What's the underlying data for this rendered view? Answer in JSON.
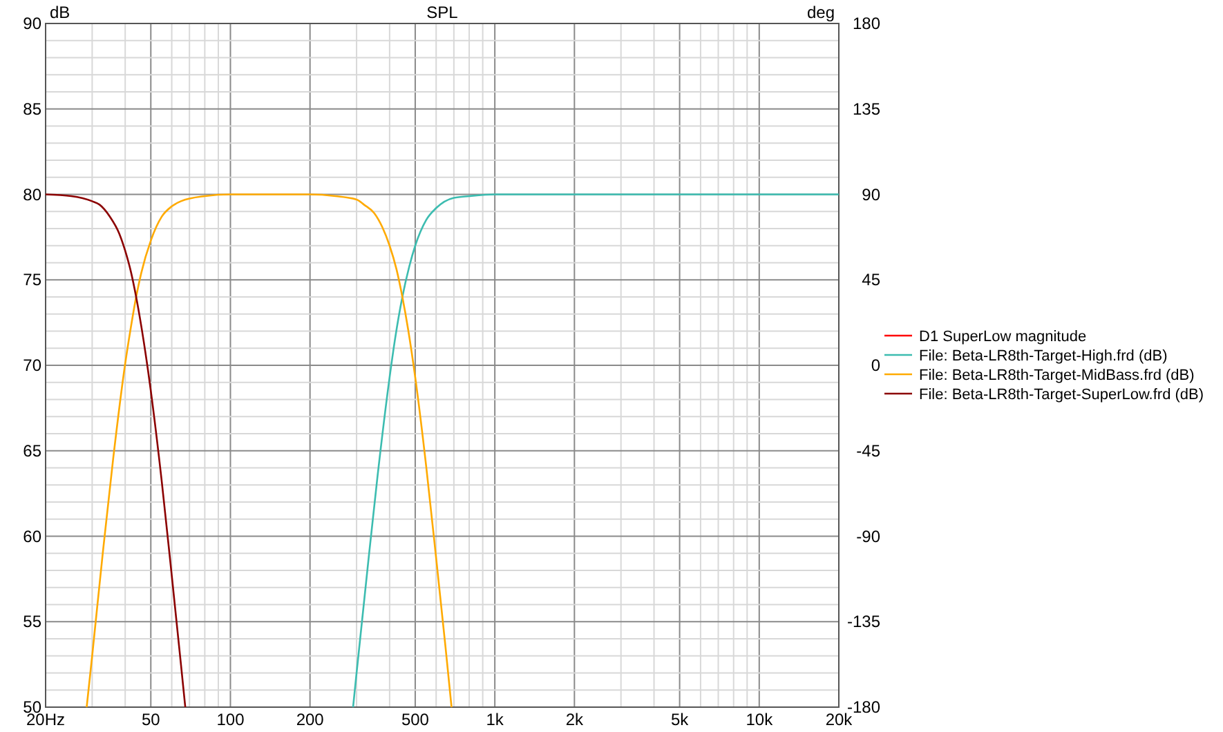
{
  "chart_data": {
    "type": "line",
    "title": "SPL",
    "ylabel": "dB",
    "y2label": "deg",
    "xlim": [
      20,
      20000
    ],
    "ylim": [
      50,
      90
    ],
    "y2lim": [
      -180,
      180
    ],
    "log": "x",
    "grid": true,
    "legend": "right",
    "line_style": "solid",
    "marker": "none",
    "xticks": [
      {
        "value": 20,
        "label": "20Hz"
      },
      {
        "value": 30,
        "label": null
      },
      {
        "value": 40,
        "label": null
      },
      50,
      {
        "value": 60,
        "label": null
      },
      {
        "value": 70,
        "label": null
      },
      {
        "value": 80,
        "label": null
      },
      {
        "value": 90,
        "label": null
      },
      100,
      200,
      {
        "value": 300,
        "label": null
      },
      {
        "value": 400,
        "label": null
      },
      500,
      {
        "value": 600,
        "label": null
      },
      {
        "value": 700,
        "label": null
      },
      {
        "value": 800,
        "label": null
      },
      {
        "value": 900,
        "label": null
      },
      {
        "value": 1000,
        "label": "1k"
      },
      {
        "value": 2000,
        "label": "2k"
      },
      {
        "value": 3000,
        "label": null
      },
      {
        "value": 4000,
        "label": null
      },
      {
        "value": 5000,
        "label": "5k"
      },
      {
        "value": 6000,
        "label": null
      },
      {
        "value": 7000,
        "label": null
      },
      {
        "value": 8000,
        "label": null
      },
      {
        "value": 9000,
        "label": null
      },
      {
        "value": 10000,
        "label": "10k"
      },
      {
        "value": 20000,
        "label": "20k"
      }
    ],
    "yticks": [
      50,
      {
        "value": 51,
        "label": null
      },
      {
        "value": 52,
        "label": null
      },
      {
        "value": 53,
        "label": null
      },
      {
        "value": 54,
        "label": null
      },
      55,
      {
        "value": 56,
        "label": null
      },
      {
        "value": 57,
        "label": null
      },
      {
        "value": 58,
        "label": null
      },
      {
        "value": 59,
        "label": null
      },
      60,
      {
        "value": 61,
        "label": null
      },
      {
        "value": 62,
        "label": null
      },
      {
        "value": 63,
        "label": null
      },
      {
        "value": 64,
        "label": null
      },
      65,
      {
        "value": 66,
        "label": null
      },
      {
        "value": 67,
        "label": null
      },
      {
        "value": 68,
        "label": null
      },
      {
        "value": 69,
        "label": null
      },
      70,
      {
        "value": 71,
        "label": null
      },
      {
        "value": 72,
        "label": null
      },
      {
        "value": 73,
        "label": null
      },
      {
        "value": 74,
        "label": null
      },
      75,
      {
        "value": 76,
        "label": null
      },
      {
        "value": 77,
        "label": null
      },
      {
        "value": 78,
        "label": null
      },
      {
        "value": 79,
        "label": null
      },
      80,
      {
        "value": 81,
        "label": null
      },
      {
        "value": 82,
        "label": null
      },
      {
        "value": 83,
        "label": null
      },
      {
        "value": 84,
        "label": null
      },
      85,
      {
        "value": 86,
        "label": null
      },
      {
        "value": 87,
        "label": null
      },
      {
        "value": 88,
        "label": null
      },
      {
        "value": 89,
        "label": null
      },
      90
    ],
    "y2ticks": [
      -180,
      -135,
      -90,
      -45,
      0,
      45,
      90,
      135,
      180
    ],
    "series": [
      {
        "name": "D1 SuperLow magnitude",
        "color": "#ff0000"
      },
      {
        "name": "File: Beta-LR8th-Target-High.frd (dB)",
        "color": "#3cbcb0",
        "x": [
          291,
          300,
          330,
          360,
          400,
          420,
          447,
          475,
          500,
          550,
          600,
          700,
          800,
          1000,
          20000
        ],
        "values": [
          50,
          52,
          58.1,
          63.5,
          69.3,
          71.6,
          74,
          75.8,
          77,
          78.5,
          79.2,
          79.8,
          79.9,
          80,
          80
        ]
      },
      {
        "name": "File: Beta-LR8th-Target-MidBass.frd (dB)",
        "color": "#ffaa00",
        "x": [
          28.6,
          30,
          33,
          36,
          40,
          42,
          44,
          46,
          50,
          55,
          60,
          65,
          80,
          100,
          150,
          200,
          250,
          300,
          320,
          350,
          375,
          400,
          425,
          447,
          470,
          500,
          550,
          600,
          650,
          686
        ],
        "values": [
          50,
          53,
          59.2,
          64.5,
          70.1,
          72.2,
          74,
          75.4,
          77.3,
          78.7,
          79.3,
          79.6,
          79.9,
          80,
          80,
          80,
          79.9,
          79.7,
          79.4,
          78.9,
          78.1,
          77,
          75.6,
          74,
          72.1,
          69.3,
          64.1,
          58.7,
          53.6,
          50
        ]
      },
      {
        "name": "File: Beta-LR8th-Target-SuperLow.frd (dB)",
        "color": "#8b0000",
        "x": [
          20,
          25,
          30,
          32,
          35,
          38,
          40,
          42,
          44,
          47,
          50,
          55,
          60,
          65,
          67.5
        ],
        "values": [
          80,
          79.9,
          79.6,
          79.4,
          78.7,
          77.7,
          76.7,
          75.5,
          74,
          71.4,
          68.5,
          63.2,
          57.7,
          52.5,
          50
        ]
      }
    ]
  }
}
